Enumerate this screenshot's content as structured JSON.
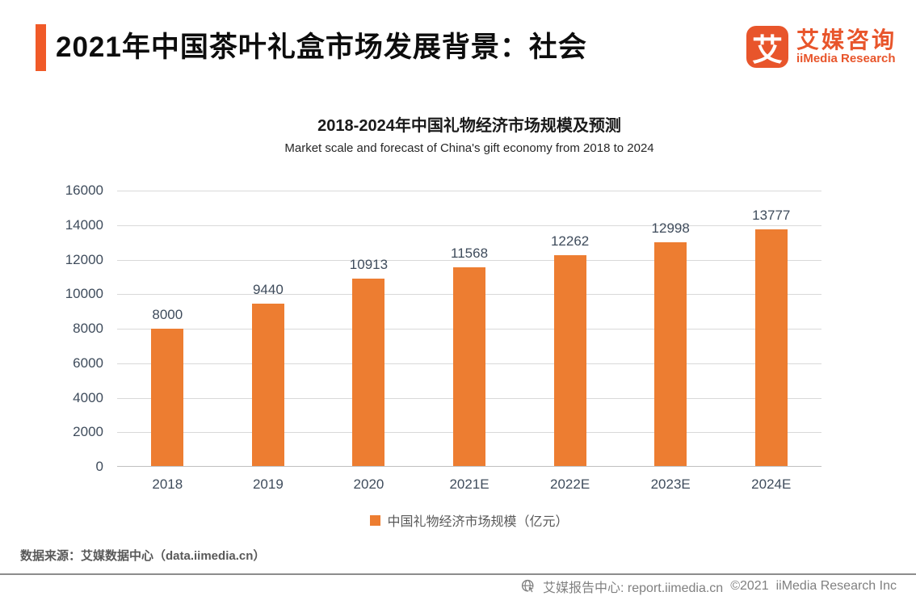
{
  "page": {
    "title": "2021年中国茶叶礼盒市场发展背景：社会"
  },
  "logo": {
    "icon_char": "艾",
    "name_cn": "艾媒咨询",
    "name_en": "iiMedia Research"
  },
  "chart_data": {
    "type": "bar",
    "title": "2018-2024年中国礼物经济市场规模及预测",
    "subtitle": "Market scale and forecast of China's gift economy from 2018 to 2024",
    "categories": [
      "2018",
      "2019",
      "2020",
      "2021E",
      "2022E",
      "2023E",
      "2024E"
    ],
    "values": [
      8000,
      9440,
      10913,
      11568,
      12262,
      12998,
      13777
    ],
    "series_name": "中国礼物经济市场规模（亿元）",
    "xlabel": "",
    "ylabel": "",
    "ylim": [
      0,
      16000
    ],
    "ytick_step": 2000,
    "grid": true,
    "legend_position": "bottom",
    "bar_color": "#ED7D31",
    "label_color": "#3F4C5C"
  },
  "legend": {
    "label": "中国礼物经济市场规模（亿元）"
  },
  "source": {
    "text": "数据来源：艾媒数据中心（data.iimedia.cn）"
  },
  "footer": {
    "center": "艾媒报告中心:  report.iimedia.cn",
    "copyright": "©2021",
    "company": "iiMedia Research  Inc"
  },
  "colors": {
    "accent": "#F05A28",
    "logo": "#E8552B",
    "bar": "#ED7D31",
    "axis_text": "#3F4C5C",
    "gridline": "#D9D9D9"
  }
}
